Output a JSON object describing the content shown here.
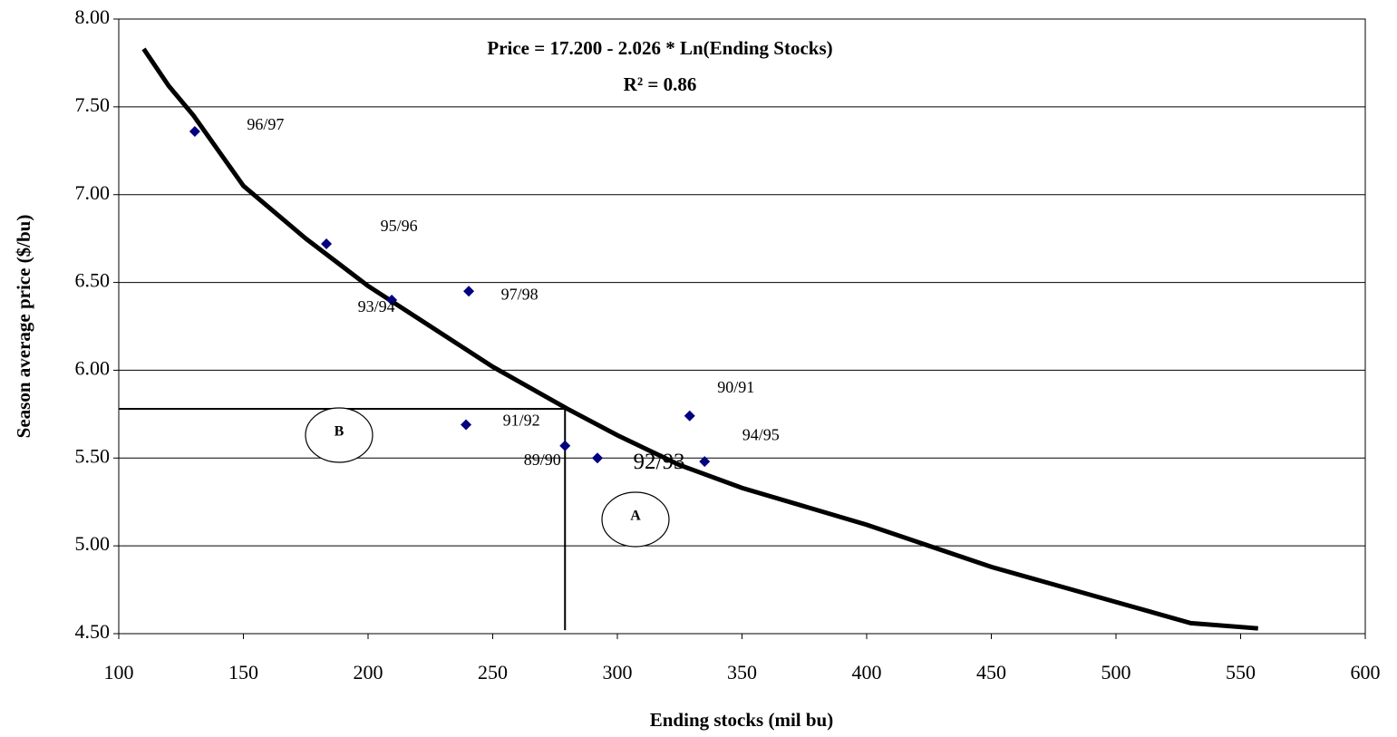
{
  "chart_data": {
    "type": "scatter",
    "annotations": [
      "Price =  17.200  - 2.026 * Ln(Ending Stocks)",
      "R² = 0.86"
    ],
    "x_label": "Ending stocks (mil bu)",
    "y_label": "Season average price ($/bu)",
    "xlim": [
      100,
      600
    ],
    "xticks": [
      100,
      150,
      200,
      250,
      300,
      350,
      400,
      450,
      500,
      550,
      600
    ],
    "ylim": [
      4.5,
      8.0
    ],
    "yticks": [
      {
        "value": 4.5,
        "label": "4.50"
      },
      {
        "value": 5,
        "label": "5.00"
      },
      {
        "value": 5.5,
        "label": "5.50"
      },
      {
        "value": 6,
        "label": "6.00"
      },
      {
        "value": 6.5,
        "label": "6.50"
      },
      {
        "value": 7,
        "label": "7.00"
      },
      {
        "value": 7.5,
        "label": "7.50"
      },
      {
        "value": 8,
        "label": "8.00"
      }
    ],
    "grid": true,
    "point_color": "#000080",
    "points": {
      "labels": [
        "96/97",
        "95/96",
        "93/94",
        "97/98",
        "90/91",
        "94/95",
        "91/92",
        "92/93",
        "89/90"
      ],
      "x": [
        130.5,
        183.3,
        209.5,
        240.4,
        329,
        335,
        239.3,
        292,
        279
      ],
      "values": [
        7.36,
        6.72,
        6.4,
        6.45,
        5.74,
        5.48,
        5.69,
        5.5,
        5.57
      ]
    },
    "curve": {
      "color": "#000000",
      "x": [
        110,
        120,
        130,
        150,
        175,
        200,
        225,
        250,
        280,
        300,
        325,
        350,
        400,
        450,
        500,
        530,
        557
      ],
      "values": [
        7.83,
        7.62,
        7.45,
        7.05,
        6.75,
        6.48,
        6.25,
        6.02,
        5.78,
        5.63,
        5.46,
        5.33,
        5.12,
        4.88,
        4.68,
        4.56,
        4.53
      ]
    },
    "reference_lines": {
      "price": 5.78,
      "stocks": 279,
      "stocks_bottom": 4.52
    },
    "regions": [
      "A",
      "B"
    ]
  }
}
